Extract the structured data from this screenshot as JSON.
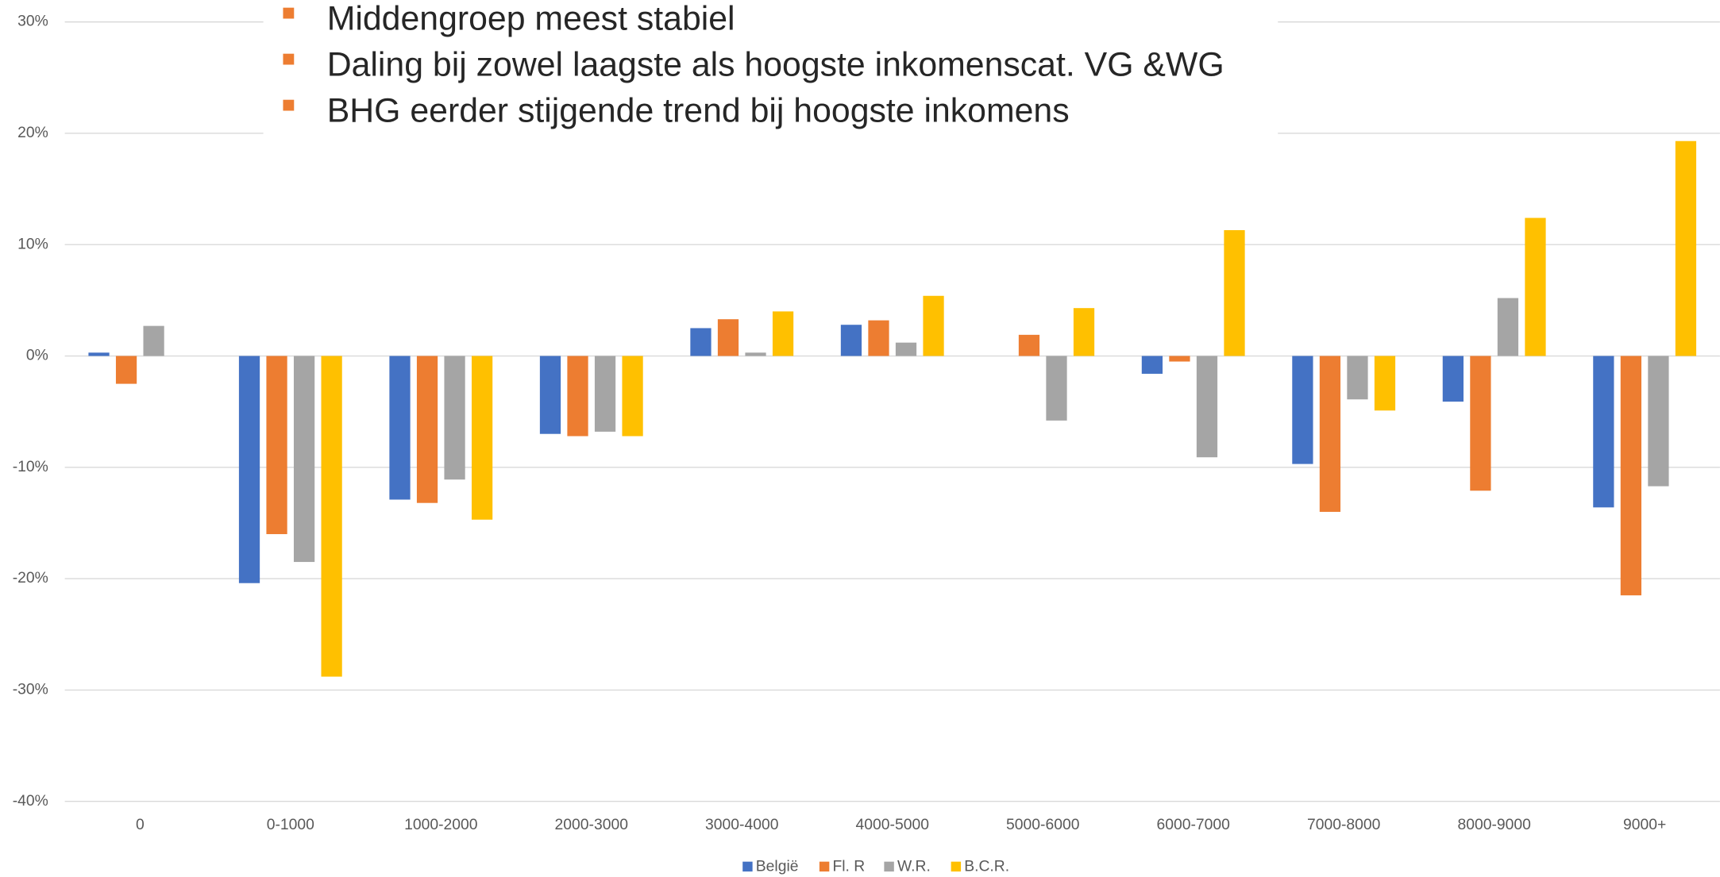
{
  "chart_data": {
    "type": "bar",
    "categories": [
      "0",
      "0-1000",
      "1000-2000",
      "2000-3000",
      "3000-4000",
      "4000-5000",
      "5000-6000",
      "6000-7000",
      "7000-8000",
      "8000-9000",
      "9000+"
    ],
    "series": [
      {
        "name": "België",
        "color": "#4472c4",
        "values": [
          0.3,
          -20.4,
          -12.9,
          -7.0,
          2.5,
          2.8,
          0,
          -1.6,
          -9.7,
          -4.1,
          -13.6
        ]
      },
      {
        "name": "Fl. R",
        "color": "#ed7d31",
        "values": [
          -2.5,
          -16.0,
          -13.2,
          -7.2,
          3.3,
          3.2,
          1.9,
          -0.5,
          -14.0,
          -12.1,
          -21.5
        ]
      },
      {
        "name": "W.R.",
        "color": "#a5a5a5",
        "values": [
          2.7,
          -18.5,
          -11.1,
          -6.8,
          0.3,
          1.2,
          -5.8,
          -9.1,
          -3.9,
          5.2,
          -11.7
        ]
      },
      {
        "name": "B.C.R.",
        "color": "#ffc000",
        "values": [
          0,
          -28.8,
          -14.7,
          -7.2,
          4.0,
          5.4,
          4.3,
          11.3,
          -4.9,
          12.4,
          19.3
        ]
      }
    ],
    "ylim": [
      -40,
      30
    ],
    "yticks": [
      {
        "value": -40,
        "label": "-40%"
      },
      {
        "value": -30,
        "label": "-30%"
      },
      {
        "value": -20,
        "label": "-20%"
      },
      {
        "value": -10,
        "label": "-10%"
      },
      {
        "value": 0,
        "label": "0%"
      },
      {
        "value": 10,
        "label": "10%"
      },
      {
        "value": 20,
        "label": "20%"
      },
      {
        "value": 30,
        "label": "30%"
      }
    ],
    "grid": true,
    "legend": "bottom",
    "annotations": [
      "Middengroep meest stabiel",
      "Daling bij zowel laagste als hoogste inkomenscat. VG &WG",
      "BHG  eerder stijgende trend bij hoogste inkomens"
    ],
    "annotation_marker_color": "#ed7d31"
  }
}
